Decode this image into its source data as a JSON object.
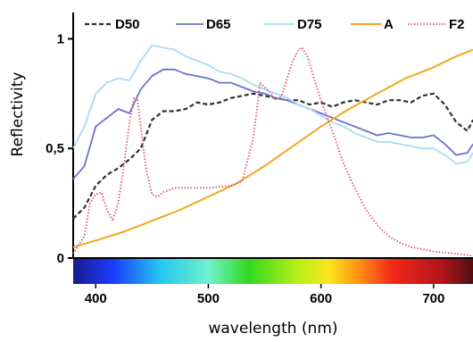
{
  "chart_data": {
    "type": "line",
    "xlabel": "wavelength (nm)",
    "ylabel": "Reflectivity",
    "xlim": [
      380,
      735
    ],
    "ylim": [
      0,
      1.12
    ],
    "x_ticks": [
      {
        "value": 400,
        "label": "400"
      },
      {
        "value": 500,
        "label": "500"
      },
      {
        "value": 600,
        "label": "600"
      },
      {
        "value": 700,
        "label": "700"
      }
    ],
    "y_ticks": [
      {
        "value": 0,
        "label": "0"
      },
      {
        "value": 0.5,
        "label": "0,5"
      },
      {
        "value": 1,
        "label": "1"
      }
    ],
    "grid": false,
    "legend_position": "top",
    "spectrum_bar": true,
    "series": [
      {
        "name": "D50",
        "color": "#2f3322",
        "dash": "dashed",
        "points": [
          [
            380,
            0.18
          ],
          [
            390,
            0.23
          ],
          [
            400,
            0.33
          ],
          [
            410,
            0.38
          ],
          [
            420,
            0.41
          ],
          [
            430,
            0.45
          ],
          [
            440,
            0.5
          ],
          [
            450,
            0.63
          ],
          [
            460,
            0.67
          ],
          [
            470,
            0.67
          ],
          [
            480,
            0.68
          ],
          [
            490,
            0.71
          ],
          [
            500,
            0.7
          ],
          [
            510,
            0.71
          ],
          [
            520,
            0.73
          ],
          [
            530,
            0.74
          ],
          [
            540,
            0.75
          ],
          [
            550,
            0.74
          ],
          [
            560,
            0.73
          ],
          [
            570,
            0.72
          ],
          [
            580,
            0.72
          ],
          [
            590,
            0.7
          ],
          [
            600,
            0.71
          ],
          [
            610,
            0.69
          ],
          [
            620,
            0.71
          ],
          [
            630,
            0.72
          ],
          [
            640,
            0.71
          ],
          [
            650,
            0.7
          ],
          [
            660,
            0.72
          ],
          [
            670,
            0.72
          ],
          [
            680,
            0.71
          ],
          [
            690,
            0.74
          ],
          [
            700,
            0.75
          ],
          [
            710,
            0.7
          ],
          [
            720,
            0.62
          ],
          [
            730,
            0.58
          ],
          [
            735,
            0.63
          ]
        ]
      },
      {
        "name": "D65",
        "color": "#6b72cc",
        "dash": "solid",
        "points": [
          [
            380,
            0.36
          ],
          [
            390,
            0.42
          ],
          [
            400,
            0.6
          ],
          [
            410,
            0.64
          ],
          [
            420,
            0.68
          ],
          [
            430,
            0.66
          ],
          [
            440,
            0.77
          ],
          [
            450,
            0.83
          ],
          [
            460,
            0.86
          ],
          [
            470,
            0.86
          ],
          [
            480,
            0.84
          ],
          [
            490,
            0.83
          ],
          [
            500,
            0.82
          ],
          [
            510,
            0.8
          ],
          [
            520,
            0.8
          ],
          [
            530,
            0.78
          ],
          [
            540,
            0.76
          ],
          [
            550,
            0.75
          ],
          [
            560,
            0.73
          ],
          [
            570,
            0.72
          ],
          [
            580,
            0.7
          ],
          [
            590,
            0.68
          ],
          [
            600,
            0.66
          ],
          [
            610,
            0.64
          ],
          [
            620,
            0.62
          ],
          [
            630,
            0.6
          ],
          [
            640,
            0.58
          ],
          [
            650,
            0.56
          ],
          [
            660,
            0.57
          ],
          [
            670,
            0.56
          ],
          [
            680,
            0.55
          ],
          [
            690,
            0.55
          ],
          [
            700,
            0.56
          ],
          [
            710,
            0.52
          ],
          [
            720,
            0.47
          ],
          [
            730,
            0.48
          ],
          [
            735,
            0.52
          ]
        ]
      },
      {
        "name": "D75",
        "color": "#a9dcf2",
        "dash": "solid",
        "points": [
          [
            380,
            0.5
          ],
          [
            390,
            0.6
          ],
          [
            400,
            0.75
          ],
          [
            410,
            0.8
          ],
          [
            420,
            0.82
          ],
          [
            430,
            0.81
          ],
          [
            440,
            0.9
          ],
          [
            450,
            0.97
          ],
          [
            460,
            0.96
          ],
          [
            470,
            0.95
          ],
          [
            480,
            0.92
          ],
          [
            490,
            0.9
          ],
          [
            500,
            0.88
          ],
          [
            510,
            0.85
          ],
          [
            520,
            0.84
          ],
          [
            530,
            0.82
          ],
          [
            540,
            0.79
          ],
          [
            550,
            0.77
          ],
          [
            560,
            0.75
          ],
          [
            570,
            0.73
          ],
          [
            580,
            0.7
          ],
          [
            590,
            0.68
          ],
          [
            600,
            0.65
          ],
          [
            610,
            0.62
          ],
          [
            620,
            0.6
          ],
          [
            630,
            0.57
          ],
          [
            640,
            0.55
          ],
          [
            650,
            0.53
          ],
          [
            660,
            0.53
          ],
          [
            670,
            0.52
          ],
          [
            680,
            0.51
          ],
          [
            690,
            0.5
          ],
          [
            700,
            0.5
          ],
          [
            710,
            0.47
          ],
          [
            720,
            0.43
          ],
          [
            730,
            0.44
          ],
          [
            735,
            0.48
          ]
        ]
      },
      {
        "name": "A",
        "color": "#f2a81e",
        "dash": "solid",
        "points": [
          [
            380,
            0.05
          ],
          [
            400,
            0.08
          ],
          [
            425,
            0.12
          ],
          [
            450,
            0.17
          ],
          [
            475,
            0.22
          ],
          [
            500,
            0.28
          ],
          [
            525,
            0.34
          ],
          [
            550,
            0.42
          ],
          [
            575,
            0.51
          ],
          [
            600,
            0.6
          ],
          [
            625,
            0.68
          ],
          [
            650,
            0.75
          ],
          [
            675,
            0.82
          ],
          [
            700,
            0.87
          ],
          [
            720,
            0.92
          ],
          [
            735,
            0.95
          ]
        ]
      },
      {
        "name": "F2",
        "color": "#e0527a",
        "dash": "dotted",
        "points": [
          [
            380,
            0.02
          ],
          [
            390,
            0.1
          ],
          [
            395,
            0.25
          ],
          [
            400,
            0.29
          ],
          [
            405,
            0.3
          ],
          [
            410,
            0.22
          ],
          [
            415,
            0.17
          ],
          [
            420,
            0.25
          ],
          [
            425,
            0.42
          ],
          [
            430,
            0.62
          ],
          [
            434,
            0.73
          ],
          [
            437,
            0.73
          ],
          [
            440,
            0.6
          ],
          [
            445,
            0.4
          ],
          [
            450,
            0.29
          ],
          [
            455,
            0.28
          ],
          [
            460,
            0.3
          ],
          [
            470,
            0.32
          ],
          [
            480,
            0.32
          ],
          [
            500,
            0.32
          ],
          [
            520,
            0.33
          ],
          [
            530,
            0.35
          ],
          [
            540,
            0.55
          ],
          [
            546,
            0.8
          ],
          [
            550,
            0.78
          ],
          [
            556,
            0.75
          ],
          [
            560,
            0.72
          ],
          [
            565,
            0.74
          ],
          [
            570,
            0.82
          ],
          [
            575,
            0.9
          ],
          [
            580,
            0.95
          ],
          [
            583,
            0.96
          ],
          [
            588,
            0.92
          ],
          [
            595,
            0.8
          ],
          [
            600,
            0.72
          ],
          [
            610,
            0.58
          ],
          [
            620,
            0.43
          ],
          [
            630,
            0.32
          ],
          [
            640,
            0.22
          ],
          [
            650,
            0.15
          ],
          [
            660,
            0.1
          ],
          [
            670,
            0.07
          ],
          [
            680,
            0.05
          ],
          [
            700,
            0.03
          ],
          [
            720,
            0.02
          ],
          [
            735,
            0.01
          ]
        ]
      }
    ]
  }
}
